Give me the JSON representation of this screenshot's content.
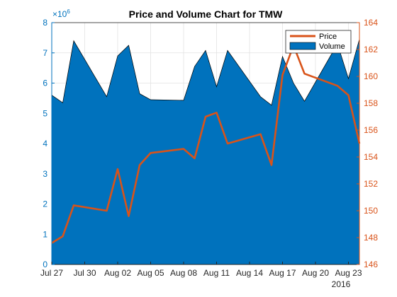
{
  "chart_data": {
    "type": "area+line",
    "title": "Price and Volume Chart for TMW",
    "y_left": {
      "range": [
        0,
        8
      ],
      "ticks": [
        0,
        1,
        2,
        3,
        4,
        5,
        6,
        7,
        8
      ],
      "exponent_label": "×10",
      "exponent_value": "6",
      "color": "#0072bd"
    },
    "y_right": {
      "range": [
        146,
        164
      ],
      "ticks": [
        146,
        148,
        150,
        152,
        154,
        156,
        158,
        160,
        162,
        164
      ],
      "color": "#d95319"
    },
    "x_axis": {
      "range": [
        "2016-07-27",
        "2016-08-24"
      ],
      "tick_dates": [
        "2016-07-27",
        "2016-07-30",
        "2016-08-02",
        "2016-08-05",
        "2016-08-08",
        "2016-08-11",
        "2016-08-14",
        "2016-08-17",
        "2016-08-20",
        "2016-08-23"
      ],
      "tick_labels": [
        "Jul 27",
        "Jul 30",
        "Aug 02",
        "Aug 05",
        "Aug 08",
        "Aug 11",
        "Aug 14",
        "Aug 17",
        "Aug 20",
        "Aug 23"
      ],
      "year_label": "2016"
    },
    "legend": {
      "position": "top-right",
      "entries": [
        "Price",
        "Volume"
      ]
    },
    "grid": true,
    "series": [
      {
        "name": "Volume",
        "kind": "area",
        "axis": "left",
        "color": "#0072bd",
        "x": [
          "2016-07-27",
          "2016-07-28",
          "2016-07-29",
          "2016-08-01",
          "2016-08-02",
          "2016-08-03",
          "2016-08-04",
          "2016-08-05",
          "2016-08-08",
          "2016-08-09",
          "2016-08-10",
          "2016-08-11",
          "2016-08-12",
          "2016-08-15",
          "2016-08-16",
          "2016-08-17",
          "2016-08-18",
          "2016-08-19",
          "2016-08-22",
          "2016-08-23",
          "2016-08-24"
        ],
        "y": [
          5.6,
          5.35,
          7.4,
          5.55,
          6.9,
          7.25,
          5.65,
          5.45,
          5.43,
          6.55,
          7.08,
          5.88,
          7.08,
          5.55,
          5.27,
          6.88,
          6.0,
          5.4,
          7.3,
          6.15,
          7.45
        ]
      },
      {
        "name": "Price",
        "kind": "line",
        "axis": "right",
        "color": "#d95319",
        "x": [
          "2016-07-27",
          "2016-07-28",
          "2016-07-29",
          "2016-08-01",
          "2016-08-02",
          "2016-08-03",
          "2016-08-04",
          "2016-08-05",
          "2016-08-08",
          "2016-08-09",
          "2016-08-10",
          "2016-08-11",
          "2016-08-12",
          "2016-08-15",
          "2016-08-16",
          "2016-08-17",
          "2016-08-18",
          "2016-08-19",
          "2016-08-22",
          "2016-08-23",
          "2016-08-24"
        ],
        "y": [
          147.6,
          148.1,
          150.4,
          150.0,
          153.1,
          149.6,
          153.4,
          154.3,
          154.6,
          153.9,
          157.0,
          157.3,
          155.0,
          155.7,
          153.4,
          160.1,
          162.3,
          160.2,
          159.3,
          158.6,
          155.0
        ]
      }
    ]
  }
}
